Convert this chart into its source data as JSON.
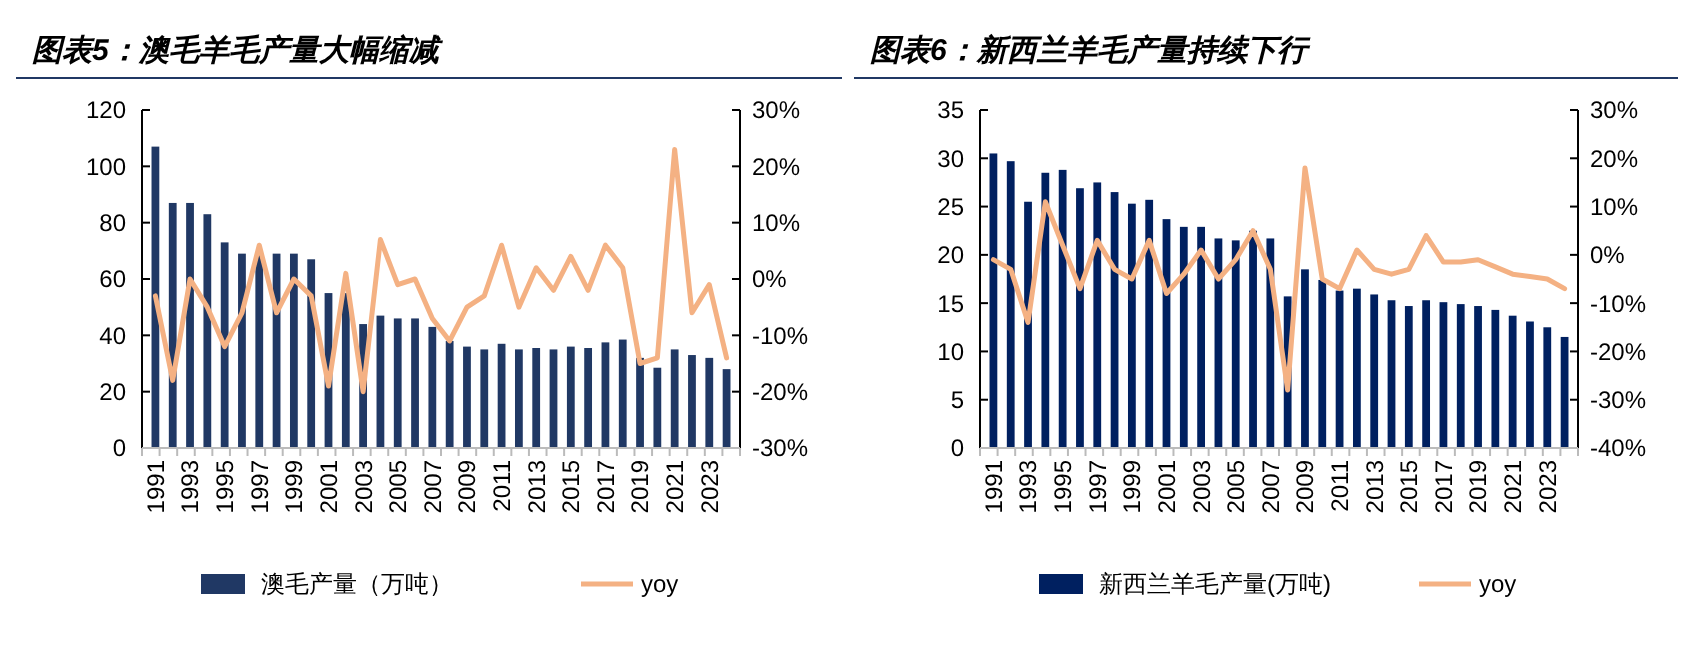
{
  "chart_data": [
    {
      "type": "bar",
      "title": "图表5：澳毛羊毛产量大幅缩减",
      "categories": [
        "1991",
        null,
        "1993",
        null,
        "1995",
        null,
        "1997",
        null,
        "1999",
        null,
        "2001",
        null,
        "2003",
        null,
        "2005",
        null,
        "2007",
        null,
        "2009",
        null,
        "2011",
        null,
        "2013",
        null,
        "2015",
        null,
        "2017",
        null,
        "2019",
        null,
        "2021",
        null,
        "2023",
        null
      ],
      "series": [
        {
          "name": "澳毛产量（万吨）",
          "color": "#203864",
          "values": [
            107,
            87,
            87,
            83,
            73,
            69,
            69,
            69,
            69,
            67,
            55,
            55,
            44,
            47,
            46,
            46,
            43,
            38,
            36,
            35,
            37,
            35,
            35.5,
            35,
            36,
            35.5,
            37.5,
            38.5,
            32,
            28.5,
            35,
            33,
            32,
            28
          ]
        },
        {
          "name": "yoy",
          "type": "line",
          "axis": "y2",
          "color": "#f4b183",
          "values": [
            -3,
            -18,
            0,
            -5,
            -12,
            -6,
            6,
            -6,
            0,
            -3,
            -19,
            1,
            -20,
            7,
            -1,
            0,
            -7,
            -11,
            -5,
            -3,
            6,
            -5,
            2,
            -2,
            4,
            -2,
            6,
            2,
            -15,
            -14,
            23,
            -6,
            -1,
            -14
          ]
        }
      ],
      "ylim": [
        0,
        120
      ],
      "yticks": [
        0,
        20,
        40,
        60,
        80,
        100,
        120
      ],
      "y2lim": [
        -30,
        30
      ],
      "y2ticks": [
        {
          "value": -30,
          "label": "-30%"
        },
        {
          "value": -20,
          "label": "-20%"
        },
        {
          "value": -10,
          "label": "-10%"
        },
        {
          "value": 0,
          "label": "0%"
        },
        {
          "value": 10,
          "label": "10%"
        },
        {
          "value": 20,
          "label": "20%"
        },
        {
          "value": 30,
          "label": "30%"
        }
      ],
      "legend": "bottom",
      "grid": false
    },
    {
      "type": "bar",
      "title": "图表6：新西兰羊毛产量持续下行",
      "categories": [
        "1991",
        null,
        "1993",
        null,
        "1995",
        null,
        "1997",
        null,
        "1999",
        null,
        "2001",
        null,
        "2003",
        null,
        "2005",
        null,
        "2007",
        null,
        "2009",
        null,
        "2011",
        null,
        "2013",
        null,
        "2015",
        null,
        "2017",
        null,
        "2019",
        null,
        "2021",
        null,
        "2023",
        null
      ],
      "series": [
        {
          "name": "新西兰羊毛产量(万吨)",
          "color": "#002060",
          "values": [
            30.5,
            29.7,
            25.5,
            28.5,
            28.8,
            26.9,
            27.5,
            26.5,
            25.3,
            25.7,
            23.7,
            22.9,
            22.9,
            21.7,
            21.5,
            22.5,
            21.7,
            15.7,
            18.5,
            17.4,
            16.3,
            16.5,
            15.9,
            15.3,
            14.7,
            15.3,
            15.1,
            14.9,
            14.7,
            14.3,
            13.7,
            13.1,
            12.5,
            11.5
          ]
        },
        {
          "name": "yoy",
          "type": "line",
          "axis": "y2",
          "color": "#f4b183",
          "values": [
            -1,
            -3,
            -14,
            11,
            2,
            -7,
            3,
            -3,
            -5,
            3,
            -8,
            -4,
            1,
            -5,
            -1,
            5,
            -3,
            -28,
            18,
            -5,
            -7,
            1,
            -3,
            -4,
            -3,
            4,
            -1.5,
            -1.5,
            -1,
            -2.5,
            -4,
            -4.5,
            -5,
            -7
          ]
        }
      ],
      "ylim": [
        0,
        35
      ],
      "yticks": [
        0,
        5,
        10,
        15,
        20,
        25,
        30,
        35
      ],
      "y2lim": [
        -40,
        30
      ],
      "y2ticks": [
        {
          "value": -40,
          "label": "-40%"
        },
        {
          "value": -30,
          "label": "-30%"
        },
        {
          "value": -20,
          "label": "-20%"
        },
        {
          "value": -10,
          "label": "-10%"
        },
        {
          "value": 0,
          "label": "0%"
        },
        {
          "value": 10,
          "label": "10%"
        },
        {
          "value": 20,
          "label": "20%"
        },
        {
          "value": 30,
          "label": "30%"
        }
      ],
      "legend": "bottom",
      "grid": false
    }
  ]
}
